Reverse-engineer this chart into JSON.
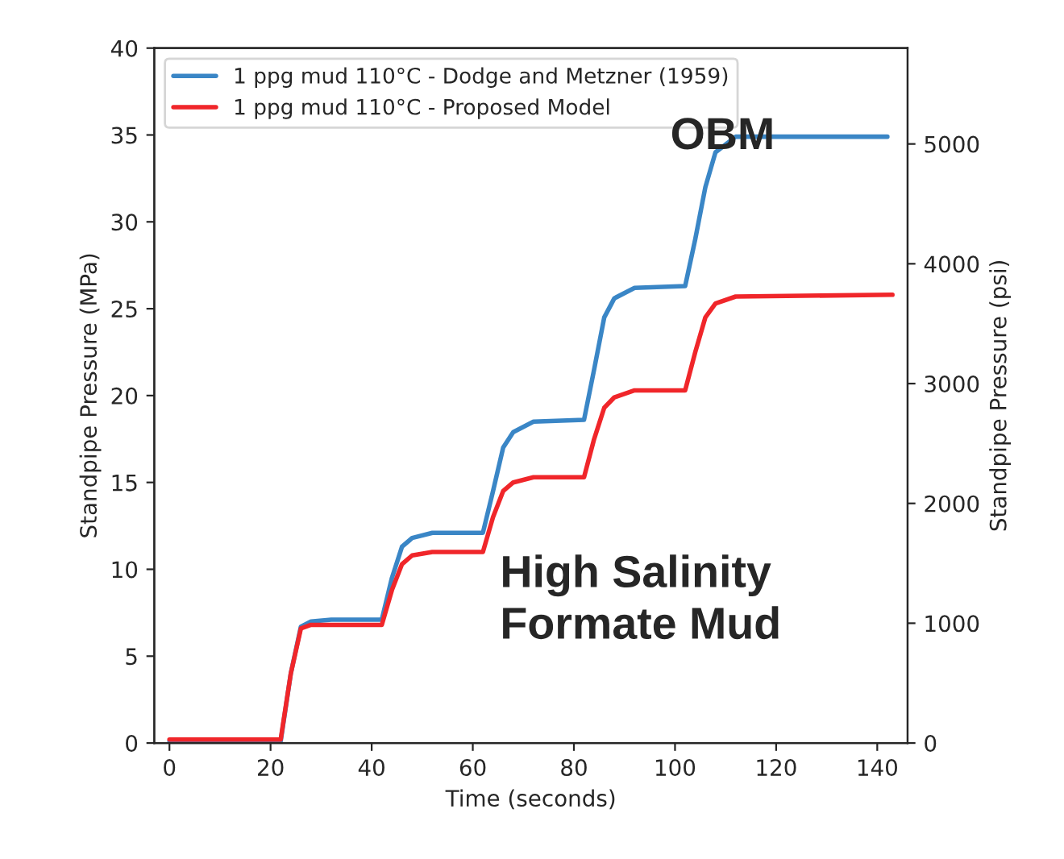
{
  "chart_data": {
    "type": "line",
    "xlabel": "Time (seconds)",
    "ylabel": "Standpipe Pressure (MPa)",
    "y2label": "Standpipe Pressure (psi)",
    "xlim": [
      -3,
      146
    ],
    "xticks": [
      0,
      20,
      40,
      60,
      80,
      100,
      120,
      140
    ],
    "ylim": [
      0,
      40
    ],
    "yticks": [
      0,
      5,
      10,
      15,
      20,
      25,
      30,
      35,
      40
    ],
    "y2lim": [
      0,
      5800
    ],
    "y2ticks": [
      0,
      1000,
      2000,
      3000,
      4000,
      5000
    ],
    "grid": false,
    "legend": "top left",
    "series": [
      {
        "name": "1 ppg mud 110°C - Dodge and Metzner (1959)",
        "color": "#3a86c6",
        "x": [
          0,
          22,
          24,
          26,
          28,
          32,
          42,
          44,
          46,
          48,
          52,
          62,
          64,
          66,
          68,
          72,
          82,
          84,
          86,
          88,
          92,
          102,
          104,
          106,
          108,
          112,
          142
        ],
        "values": [
          0.1,
          0.1,
          4,
          6.7,
          7.0,
          7.1,
          7.1,
          9.5,
          11.3,
          11.8,
          12.1,
          12.1,
          14.5,
          17,
          17.9,
          18.5,
          18.6,
          21.5,
          24.5,
          25.6,
          26.2,
          26.3,
          29,
          32,
          34,
          34.9,
          34.9
        ]
      },
      {
        "name": "1 ppg mud 110°C - Proposed Model",
        "color": "#f0262a",
        "x": [
          0,
          22,
          24,
          26,
          28,
          32,
          42,
          44,
          46,
          48,
          52,
          62,
          64,
          66,
          68,
          72,
          82,
          84,
          86,
          88,
          92,
          102,
          104,
          106,
          108,
          112,
          143
        ],
        "values": [
          0.2,
          0.2,
          4,
          6.6,
          6.8,
          6.8,
          6.8,
          8.8,
          10.3,
          10.8,
          11.0,
          11.0,
          13,
          14.5,
          15.0,
          15.3,
          15.3,
          17.5,
          19.3,
          19.9,
          20.3,
          20.3,
          22.5,
          24.5,
          25.3,
          25.7,
          25.8
        ]
      }
    ],
    "annotations": [
      "OBM",
      "High Salinity Formate Mud"
    ]
  }
}
